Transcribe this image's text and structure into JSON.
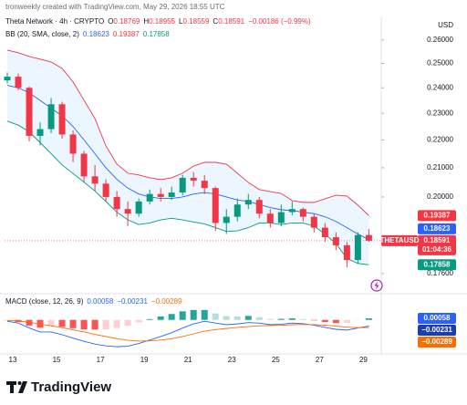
{
  "header": {
    "credit": "tronweekly created with TradingView.com, May 29, 2026 18:55 UTC"
  },
  "chart_data": [
    {
      "type": "candlestick",
      "title": "Theta Network · 4h · CRYPTO",
      "ohlc_legend": [
        {
          "key": "O",
          "value": "0.18769"
        },
        {
          "key": "H",
          "value": "0.18955"
        },
        {
          "key": "L",
          "value": "0.18559"
        },
        {
          "key": "C",
          "value": "0.18591"
        }
      ],
      "change": "−0.00186 (−0.99%)",
      "currency": "USD",
      "up_color": "#089981",
      "down_color": "#f23645",
      "x": [
        12.75,
        13.25,
        13.75,
        14.25,
        14.75,
        15.25,
        15.75,
        16.25,
        16.75,
        17.25,
        17.75,
        18.25,
        18.75,
        19.25,
        19.75,
        20.25,
        20.75,
        21.25,
        21.75,
        22.25,
        22.75,
        23.25,
        23.75,
        24.25,
        24.75,
        25.25,
        25.75,
        26.25,
        26.75,
        27.25,
        27.75,
        28.25,
        28.75,
        29.25
      ],
      "open": [
        0.243,
        0.2445,
        0.24,
        0.2215,
        0.224,
        0.2335,
        0.222,
        0.215,
        0.207,
        0.2045,
        0.2,
        0.196,
        0.1945,
        0.1985,
        0.201,
        0.2,
        0.2015,
        0.2065,
        0.2055,
        0.203,
        0.1915,
        0.1935,
        0.1975,
        0.199,
        0.1945,
        0.1915,
        0.195,
        0.196,
        0.1935,
        0.19,
        0.187,
        0.1845,
        0.18,
        0.18769
      ],
      "high": [
        0.2462,
        0.2458,
        0.2405,
        0.2265,
        0.236,
        0.2345,
        0.2235,
        0.216,
        0.211,
        0.206,
        0.202,
        0.1985,
        0.1995,
        0.2025,
        0.203,
        0.2035,
        0.2075,
        0.2085,
        0.2075,
        0.2035,
        0.196,
        0.1995,
        0.201,
        0.2,
        0.196,
        0.1975,
        0.1985,
        0.1965,
        0.1945,
        0.1915,
        0.1885,
        0.1855,
        0.1885,
        0.18955
      ],
      "low": [
        0.2418,
        0.239,
        0.2195,
        0.218,
        0.2225,
        0.2205,
        0.212,
        0.205,
        0.202,
        0.1985,
        0.1935,
        0.1905,
        0.1935,
        0.1975,
        0.1985,
        0.199,
        0.2005,
        0.2035,
        0.201,
        0.189,
        0.188,
        0.192,
        0.196,
        0.193,
        0.19,
        0.1905,
        0.194,
        0.192,
        0.1885,
        0.1855,
        0.183,
        0.1778,
        0.179,
        0.18559
      ],
      "close": [
        0.2445,
        0.24,
        0.2215,
        0.224,
        0.2335,
        0.222,
        0.215,
        0.207,
        0.2045,
        0.2,
        0.196,
        0.1945,
        0.1985,
        0.201,
        0.2,
        0.2015,
        0.2065,
        0.2055,
        0.203,
        0.1915,
        0.1935,
        0.1975,
        0.199,
        0.1945,
        0.1915,
        0.195,
        0.196,
        0.1935,
        0.19,
        0.187,
        0.1845,
        0.18,
        0.18769,
        0.18591
      ],
      "xlim": [
        12.625,
        29.9
      ],
      "xticks": [
        13,
        15,
        17,
        19,
        21,
        23,
        25,
        27,
        29
      ],
      "ylim": [
        0.1712,
        0.2655
      ],
      "log_scale": true,
      "yticks": [
        {
          "value": 0.26,
          "label": "0.26000"
        },
        {
          "value": 0.25,
          "label": "0.25000"
        },
        {
          "value": 0.24,
          "label": "0.24000"
        },
        {
          "value": 0.23,
          "label": "0.23000"
        },
        {
          "value": 0.22,
          "label": "0.22000"
        },
        {
          "value": 0.21,
          "label": "0.21000"
        },
        {
          "value": 0.2,
          "label": "0.20000"
        },
        {
          "value": 0.176,
          "label": "0.17600"
        }
      ],
      "indicator": {
        "title": "BB (20, SMA, close, 2)",
        "fill": "rgba(33,150,243,0.09)",
        "series": [
          {
            "color": "#2962ff",
            "value_label": "0.18623",
            "values": [
              0.241,
              0.24,
              0.238,
              0.235,
              0.232,
              0.229,
              0.225,
              0.22,
              0.215,
              0.21,
              0.206,
              0.203,
              0.201,
              0.2,
              0.1995,
              0.1995,
              0.2,
              0.201,
              0.2015,
              0.201,
              0.2,
              0.199,
              0.1985,
              0.1975,
              0.1965,
              0.1958,
              0.1955,
              0.195,
              0.1945,
              0.1935,
              0.192,
              0.19,
              0.188,
              0.18623
            ]
          },
          {
            "color": "#f23645",
            "value_label": "0.19387",
            "values": [
              0.2556,
              0.2545,
              0.2529,
              0.2518,
              0.2506,
              0.2479,
              0.2424,
              0.2351,
              0.228,
              0.2178,
              0.2113,
              0.2081,
              0.2075,
              0.2065,
              0.2059,
              0.2065,
              0.2081,
              0.2106,
              0.2119,
              0.2119,
              0.2113,
              0.2081,
              0.2049,
              0.2025,
              0.2018,
              0.2012,
              0.1988,
              0.1982,
              0.1982,
              0.1994,
              0.2006,
              0.2003,
              0.1973,
              0.19387
            ]
          },
          {
            "color": "#089981",
            "value_label": "0.17858",
            "values": [
              0.227,
              0.2255,
              0.223,
              0.219,
              0.215,
              0.211,
              0.208,
              0.205,
              0.202,
              0.1985,
              0.195,
              0.1925,
              0.191,
              0.1915,
              0.1925,
              0.193,
              0.1925,
              0.1918,
              0.1912,
              0.19,
              0.1888,
              0.189,
              0.19,
              0.1915,
              0.1915,
              0.191,
              0.1915,
              0.1915,
              0.1905,
              0.188,
              0.185,
              0.1805,
              0.179,
              0.17858
            ]
          }
        ]
      },
      "price_tags": [
        {
          "value": 0.19387,
          "label": "0.19387",
          "color": "#f23645"
        },
        {
          "value": 0.18623,
          "label": "0.18623",
          "color": "#2962ff"
        },
        {
          "value": 0.18591,
          "label": "0.18591",
          "color": "#f23645",
          "symbol": "THETAUSD",
          "countdown": "01:04:36"
        },
        {
          "value": 0.17858,
          "label": "0.17858",
          "color": "#089981"
        }
      ]
    },
    {
      "type": "macd",
      "title": "MACD (close, 12, 26, 9)",
      "ylim": [
        -0.012,
        0.005
      ],
      "histogram": {
        "value_label": "0.00058",
        "label_color": "#2962ff",
        "colors": [
          "#26a69a",
          "#b2dfdb",
          "#ff5252",
          "#ffcdd2"
        ],
        "values": [
          -0.0003,
          -0.0008,
          -0.0021,
          -0.0029,
          -0.0023,
          -0.0026,
          -0.0031,
          -0.0035,
          -0.0036,
          -0.0035,
          -0.003,
          -0.0022,
          -0.0009,
          0.0003,
          0.0013,
          0.0022,
          0.0032,
          0.0037,
          0.0037,
          0.0024,
          0.0014,
          0.0013,
          0.0015,
          0.001,
          0.0003,
          0.0004,
          0.0006,
          0.0003,
          -0.0002,
          -0.0008,
          -0.0012,
          -0.0011,
          -0.0001,
          0.00058
        ]
      },
      "series": [
        {
          "color": "#2962ff",
          "value_label": "−0.00231",
          "values": [
            -0.0005,
            -0.0012,
            -0.003,
            -0.0045,
            -0.0045,
            -0.0055,
            -0.0068,
            -0.008,
            -0.009,
            -0.0097,
            -0.01,
            -0.0098,
            -0.0088,
            -0.0075,
            -0.0062,
            -0.0048,
            -0.003,
            -0.0015,
            -0.0005,
            -0.0012,
            -0.0018,
            -0.0015,
            -0.001,
            -0.0012,
            -0.0018,
            -0.0016,
            -0.0012,
            -0.0014,
            -0.002,
            -0.0028,
            -0.0035,
            -0.0038,
            -0.003,
            -0.00231
          ]
        },
        {
          "color": "#ff6d00",
          "value_label": "−0.00289",
          "values": [
            -0.0002,
            -0.0004,
            -0.0009,
            -0.0016,
            -0.0022,
            -0.0029,
            -0.0037,
            -0.0045,
            -0.0054,
            -0.0062,
            -0.007,
            -0.0076,
            -0.0079,
            -0.0078,
            -0.0075,
            -0.007,
            -0.0062,
            -0.0052,
            -0.0042,
            -0.0036,
            -0.0032,
            -0.0028,
            -0.0025,
            -0.0022,
            -0.0021,
            -0.002,
            -0.0018,
            -0.0017,
            -0.0018,
            -0.002,
            -0.0023,
            -0.0027,
            -0.0029,
            -0.00289
          ]
        }
      ],
      "tags": [
        {
          "value": 0.00058,
          "label": "0.00058",
          "color": "#2962ff"
        },
        {
          "value": -0.00231,
          "label": "−0.00231",
          "color": "#1e3fa8"
        },
        {
          "value": -0.00289,
          "label": "−0.00289",
          "color": "#ff6d00"
        }
      ]
    }
  ],
  "footer": {
    "brand": "TradingView"
  }
}
